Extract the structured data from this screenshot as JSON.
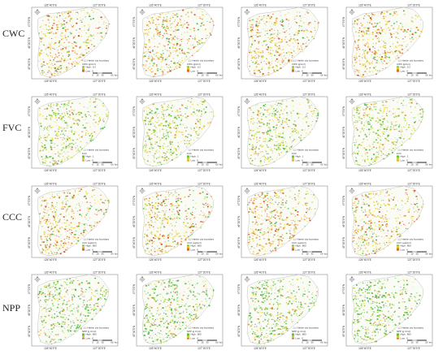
{
  "ticks": {
    "top": [
      "126°40'0\"E",
      "127°20'0\"E"
    ],
    "bottom": [
      "126°40'0\"E",
      "127°20'0\"E"
    ],
    "left": [
      "47°0'0\"N",
      "46°20'0\"N",
      "45°40'0\"N"
    ]
  },
  "legend": {
    "boundary": "Harbin city boundary",
    "scale": [
      "0",
      "15",
      "30",
      "60"
    ],
    "scale_unit": "km"
  },
  "rows": [
    {
      "label": "CWC",
      "scheme": "yellow-orange",
      "legend_title": "CWC (g/cm²)",
      "high": "High : 0.2",
      "low": "Low : 0"
    },
    {
      "label": "FVC",
      "scheme": "yellow-green",
      "legend_title": "FVC",
      "high": "High : 1",
      "low": "Low : 0"
    },
    {
      "label": "CCC",
      "scheme": "yellow-orange",
      "legend_title": "CCC (μg/cm²)",
      "high": "High : 800",
      "low": "Low : 0"
    },
    {
      "label": "NPP",
      "scheme": "green",
      "legend_title": "NPP (g C/m²)",
      "high": "High : 800",
      "low": "Low : 0"
    }
  ],
  "panels_per_row": 4,
  "colors": {
    "green": "#3cb43c",
    "yellow": "#e8dc3a",
    "orange": "#e0872e",
    "red": "#c8402a"
  }
}
